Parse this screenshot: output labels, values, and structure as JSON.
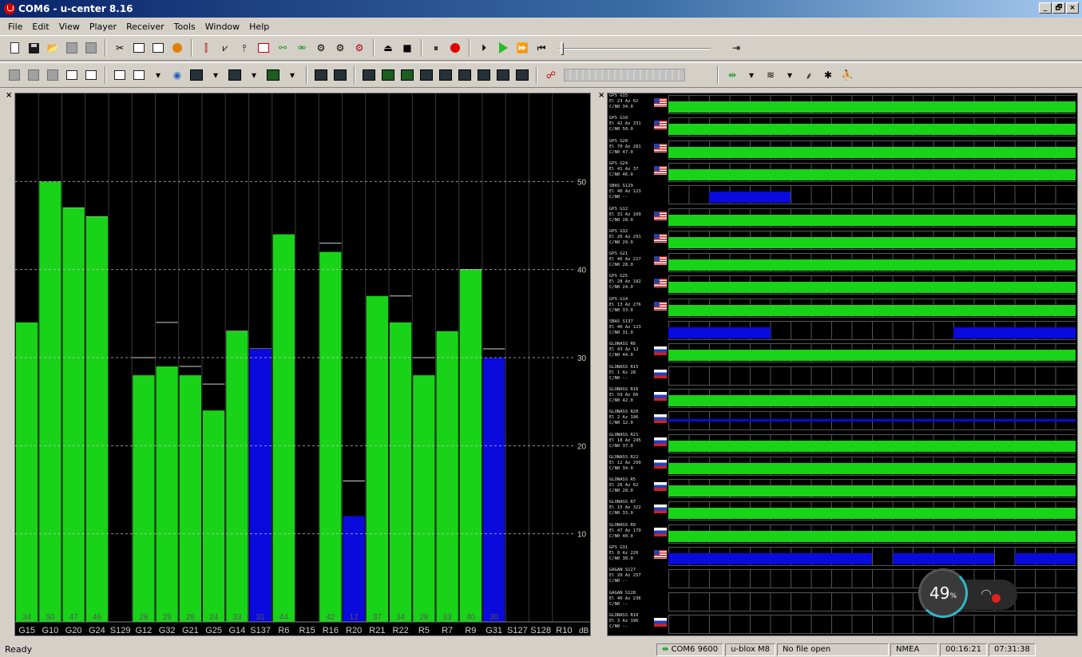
{
  "window": {
    "title": "COM6 - u-center 8.16",
    "controls": [
      "_",
      "🗗",
      "×"
    ]
  },
  "menu": [
    "File",
    "Edit",
    "View",
    "Player",
    "Receiver",
    "Tools",
    "Window",
    "Help"
  ],
  "colors": {
    "gps": "#19d319",
    "sbas": "#0a0adc",
    "bg": "#000000"
  },
  "cn0_chart": {
    "type": "bar",
    "y_ticks": [
      "10",
      "20",
      "30",
      "40",
      "50"
    ],
    "ylim": [
      0,
      60
    ],
    "unit": "dB",
    "bars": [
      {
        "label": "G15",
        "value": 34,
        "prev": 33,
        "color": "green",
        "shown": "34"
      },
      {
        "label": "G10",
        "value": 50,
        "prev": 49,
        "color": "green",
        "shown": "50"
      },
      {
        "label": "G20",
        "value": 47,
        "prev": 47,
        "color": "green",
        "shown": "47"
      },
      {
        "label": "G24",
        "value": 46,
        "prev": 46,
        "color": "green",
        "shown": "46"
      },
      {
        "label": "S129",
        "value": 0,
        "prev": 0,
        "color": "none",
        "shown": ""
      },
      {
        "label": "G12",
        "value": 28,
        "prev": 30,
        "color": "green",
        "shown": "28"
      },
      {
        "label": "G32",
        "value": 29,
        "prev": 34,
        "color": "green",
        "shown": "29"
      },
      {
        "label": "G21",
        "value": 28,
        "prev": 29,
        "color": "green",
        "shown": "28"
      },
      {
        "label": "G25",
        "value": 24,
        "prev": 27,
        "color": "green",
        "shown": "24"
      },
      {
        "label": "G14",
        "value": 33,
        "prev": 33,
        "color": "green",
        "shown": "33"
      },
      {
        "label": "S137",
        "value": 31,
        "prev": 31,
        "color": "blue",
        "shown": "31"
      },
      {
        "label": "R6",
        "value": 44,
        "prev": 43,
        "color": "green",
        "shown": "44"
      },
      {
        "label": "R15",
        "value": 0,
        "prev": 0,
        "color": "none",
        "shown": ""
      },
      {
        "label": "R16",
        "value": 42,
        "prev": 43,
        "color": "green",
        "shown": "42"
      },
      {
        "label": "R20",
        "value": 12,
        "prev": 16,
        "color": "blue",
        "shown": "12"
      },
      {
        "label": "R21",
        "value": 37,
        "prev": 36,
        "color": "green",
        "shown": "37"
      },
      {
        "label": "R22",
        "value": 34,
        "prev": 37,
        "color": "green",
        "shown": "34"
      },
      {
        "label": "R5",
        "value": 28,
        "prev": 30,
        "color": "green",
        "shown": "28"
      },
      {
        "label": "R7",
        "value": 33,
        "prev": 31,
        "color": "green",
        "shown": "33"
      },
      {
        "label": "R9",
        "value": 40,
        "prev": 40,
        "color": "green",
        "shown": "40"
      },
      {
        "label": "G31",
        "value": 30,
        "prev": 31,
        "color": "blue",
        "shown": "30"
      },
      {
        "label": "S127",
        "value": 0,
        "prev": 0,
        "color": "none",
        "shown": ""
      },
      {
        "label": "S128",
        "value": 0,
        "prev": 0,
        "color": "none",
        "shown": ""
      },
      {
        "label": "R10",
        "value": 0,
        "prev": 0,
        "color": "none",
        "shown": ""
      }
    ]
  },
  "chart_data": {
    "type": "bar",
    "categories": [
      "G15",
      "G10",
      "G20",
      "G24",
      "S129",
      "G12",
      "G32",
      "G21",
      "G25",
      "G14",
      "S137",
      "R6",
      "R15",
      "R16",
      "R20",
      "R21",
      "R22",
      "R5",
      "R7",
      "R9",
      "G31",
      "S127",
      "S128",
      "R10"
    ],
    "values": [
      34,
      50,
      47,
      46,
      0,
      28,
      29,
      28,
      24,
      33,
      31,
      44,
      0,
      42,
      12,
      37,
      34,
      28,
      33,
      40,
      30,
      0,
      0,
      0
    ],
    "ylabel": "dB",
    "ylim": [
      0,
      60
    ],
    "y_ticks": [
      10,
      20,
      30,
      40,
      50
    ],
    "grid": true
  },
  "sky_rows": [
    {
      "lines": [
        "GPS G15",
        "El 23 Az 62",
        "C/N0 34.0"
      ],
      "flag": "us",
      "segs": [
        [
          0,
          1,
          "g"
        ]
      ]
    },
    {
      "lines": [
        "GPS G10",
        "El 42 Az 331",
        "C/N0 50.0"
      ],
      "flag": "us",
      "segs": [
        [
          0,
          1,
          "g"
        ]
      ]
    },
    {
      "lines": [
        "GPS G20",
        "El 70 Az 281",
        "C/N0 47.0"
      ],
      "flag": "us",
      "segs": [
        [
          0,
          1,
          "g"
        ]
      ]
    },
    {
      "lines": [
        "GPS G24",
        "El 41 Az 37",
        "C/N0 46.0"
      ],
      "flag": "us",
      "segs": [
        [
          0,
          1,
          "g"
        ]
      ]
    },
    {
      "lines": [
        "SBAS S129",
        "El 46 Az 123",
        "C/N0 --"
      ],
      "flag": "",
      "segs": [
        [
          0.1,
          0.3,
          "b"
        ]
      ]
    },
    {
      "lines": [
        "GPS G12",
        "El 31 Az 109",
        "C/N0 28.0"
      ],
      "flag": "us",
      "segs": [
        [
          0,
          1,
          "g"
        ]
      ]
    },
    {
      "lines": [
        "GPS G32",
        "El 26 Az 291",
        "C/N0 29.0"
      ],
      "flag": "us",
      "segs": [
        [
          0,
          1,
          "g"
        ]
      ]
    },
    {
      "lines": [
        "GPS G21",
        "El 46 Az 217",
        "C/N0 28.0"
      ],
      "flag": "us",
      "segs": [
        [
          0,
          1,
          "g"
        ]
      ]
    },
    {
      "lines": [
        "GPS G25",
        "El 28 Az 182",
        "C/N0 24.0"
      ],
      "flag": "us",
      "segs": [
        [
          0,
          1,
          "g"
        ]
      ]
    },
    {
      "lines": [
        "GPS G14",
        "El 13 Az 276",
        "C/N0 33.0"
      ],
      "flag": "us",
      "segs": [
        [
          0,
          1,
          "g"
        ]
      ]
    },
    {
      "lines": [
        "SBAS S137",
        "El 46 Az 123",
        "C/N0 31.0"
      ],
      "flag": "",
      "segs": [
        [
          0,
          0.25,
          "b"
        ],
        [
          0.7,
          1,
          "b"
        ]
      ]
    },
    {
      "lines": [
        "GLONASS R6",
        "El 43 Az 12",
        "C/N0 44.0"
      ],
      "flag": "ru",
      "segs": [
        [
          0,
          1,
          "g"
        ]
      ]
    },
    {
      "lines": [
        "GLONASS R15",
        "El 1 Az 28",
        "C/N0 --"
      ],
      "flag": "ru",
      "segs": []
    },
    {
      "lines": [
        "GLONASS R16",
        "El 59 Az 66",
        "C/N0 42.0"
      ],
      "flag": "ru",
      "segs": [
        [
          0,
          1,
          "g"
        ]
      ]
    },
    {
      "lines": [
        "GLONASS R20",
        "El 2 Az 196",
        "C/N0 12.0"
      ],
      "flag": "ru",
      "segs": [
        [
          0,
          1,
          "b"
        ]
      ]
    },
    {
      "lines": [
        "GLONASS R21",
        "El 18 Az 245",
        "C/N0 37.0"
      ],
      "flag": "ru",
      "segs": [
        [
          0,
          1,
          "g"
        ]
      ]
    },
    {
      "lines": [
        "GLONASS R22",
        "El 12 Az 299",
        "C/N0 34.0"
      ],
      "flag": "ru",
      "segs": [
        [
          0,
          1,
          "g"
        ]
      ]
    },
    {
      "lines": [
        "GLONASS R5",
        "El 26 Az 62",
        "C/N0 28.0"
      ],
      "flag": "ru",
      "segs": [
        [
          0,
          1,
          "g"
        ]
      ]
    },
    {
      "lines": [
        "GLONASS R7",
        "El 15 Az 322",
        "C/N0 33.0"
      ],
      "flag": "ru",
      "segs": [
        [
          0,
          1,
          "g"
        ]
      ]
    },
    {
      "lines": [
        "GLONASS R9",
        "El 47 Az 179",
        "C/N0 40.0"
      ],
      "flag": "ru",
      "segs": [
        [
          0,
          1,
          "g"
        ]
      ]
    },
    {
      "lines": [
        "GPS G31",
        "El 8 Az 220",
        "C/N0 30.0"
      ],
      "flag": "us",
      "segs": [
        [
          0,
          0.5,
          "b"
        ],
        [
          0.55,
          0.8,
          "b"
        ],
        [
          0.85,
          1,
          "b"
        ]
      ]
    },
    {
      "lines": [
        "GAGAN S127",
        "El 20 Az 257",
        "C/N0 --"
      ],
      "flag": "",
      "segs": []
    },
    {
      "lines": [
        "GAGAN S128",
        "El 46 Az 236",
        "C/N0 --"
      ],
      "flag": "",
      "segs": []
    },
    {
      "lines": [
        "GLONASS R10",
        "El 3 Az 196",
        "C/N0 --"
      ],
      "flag": "ru",
      "segs": []
    }
  ],
  "overlay": {
    "percent": "49",
    "unit": "%"
  },
  "status": {
    "ready": "Ready",
    "port": "COM6 9600",
    "receiver": "u-blox M8",
    "file": "No file open",
    "protocol": "NMEA",
    "elapsed": "00:16:21",
    "clock": "07:31:38"
  }
}
